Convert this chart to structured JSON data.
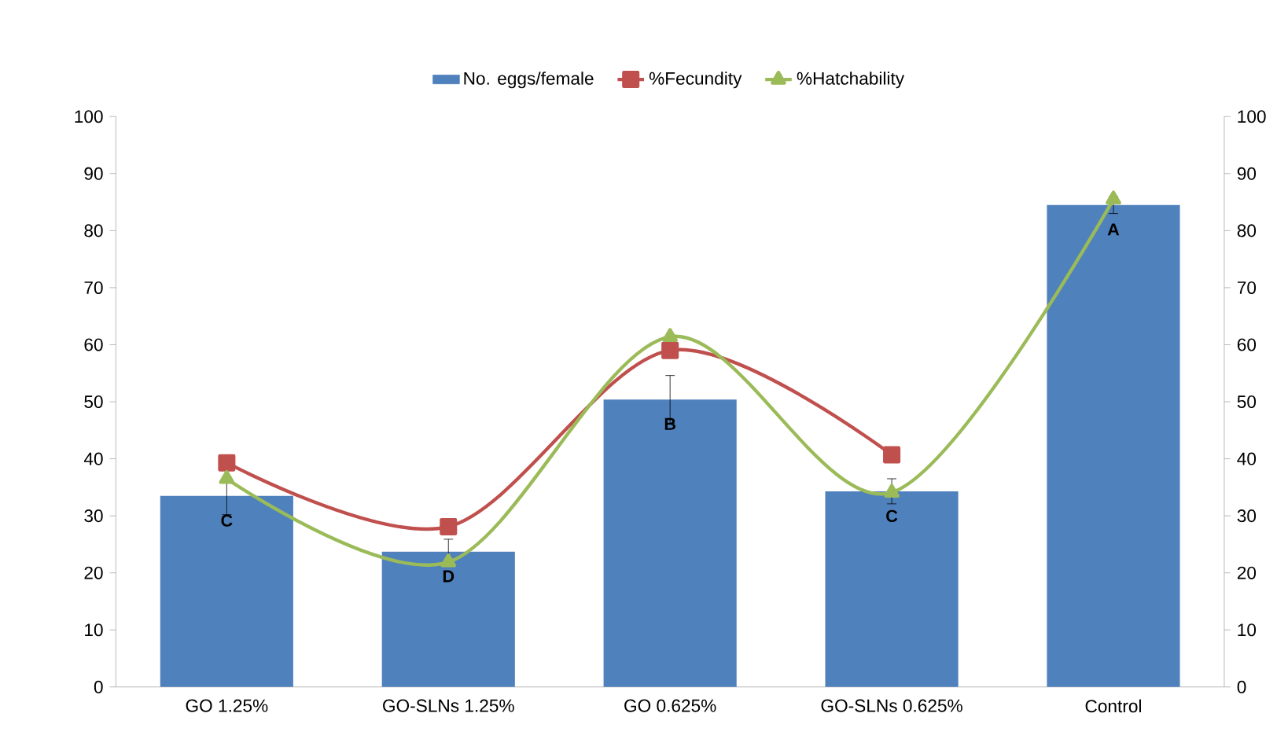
{
  "chart_data": {
    "type": "bar",
    "categories": [
      "GO 1.25%",
      "GO-SLNs 1.25%",
      "GO 0.625%",
      "GO-SLNs 0.625%",
      "Control"
    ],
    "series": [
      {
        "name": "No. eggs/female",
        "color": "#4f81bd",
        "values": [
          33.5,
          23.7,
          50.4,
          34.3,
          84.5
        ],
        "errors": [
          3.3,
          2.2,
          4.2,
          2.2,
          1.5
        ]
      },
      {
        "name": "%Fecundity",
        "type": "line",
        "axis": "y2",
        "color": "#c0504d",
        "marker": "square",
        "values": [
          39.3,
          28.1,
          59,
          40.7,
          null
        ]
      },
      {
        "name": "%Hatchability",
        "type": "line",
        "axis": "y2",
        "color": "#9bbb59",
        "marker": "triangle",
        "values": [
          36.5,
          21.9,
          61.4,
          34.1,
          85.5
        ]
      }
    ],
    "ylim": [
      0,
      100
    ],
    "yticks": [
      0,
      10,
      20,
      30,
      40,
      50,
      60,
      70,
      80,
      90,
      100
    ],
    "y2lim": [
      0,
      100
    ],
    "y2ticks": [
      0,
      10,
      20,
      30,
      40,
      50,
      60,
      70,
      80,
      90,
      100
    ],
    "legend": "top",
    "grid": false,
    "annotations": [
      {
        "text": "C",
        "x": "GO 1.25%",
        "y": 33.5
      },
      {
        "text": "D",
        "x": "GO-SLNs 1.25%",
        "y": 23.7
      },
      {
        "text": "B",
        "x": "GO 0.625%",
        "y": 50.4
      },
      {
        "text": "C",
        "x": "GO-SLNs 0.625%",
        "y": 34.3
      },
      {
        "text": "A",
        "x": "Control",
        "y": 84.5
      }
    ]
  }
}
